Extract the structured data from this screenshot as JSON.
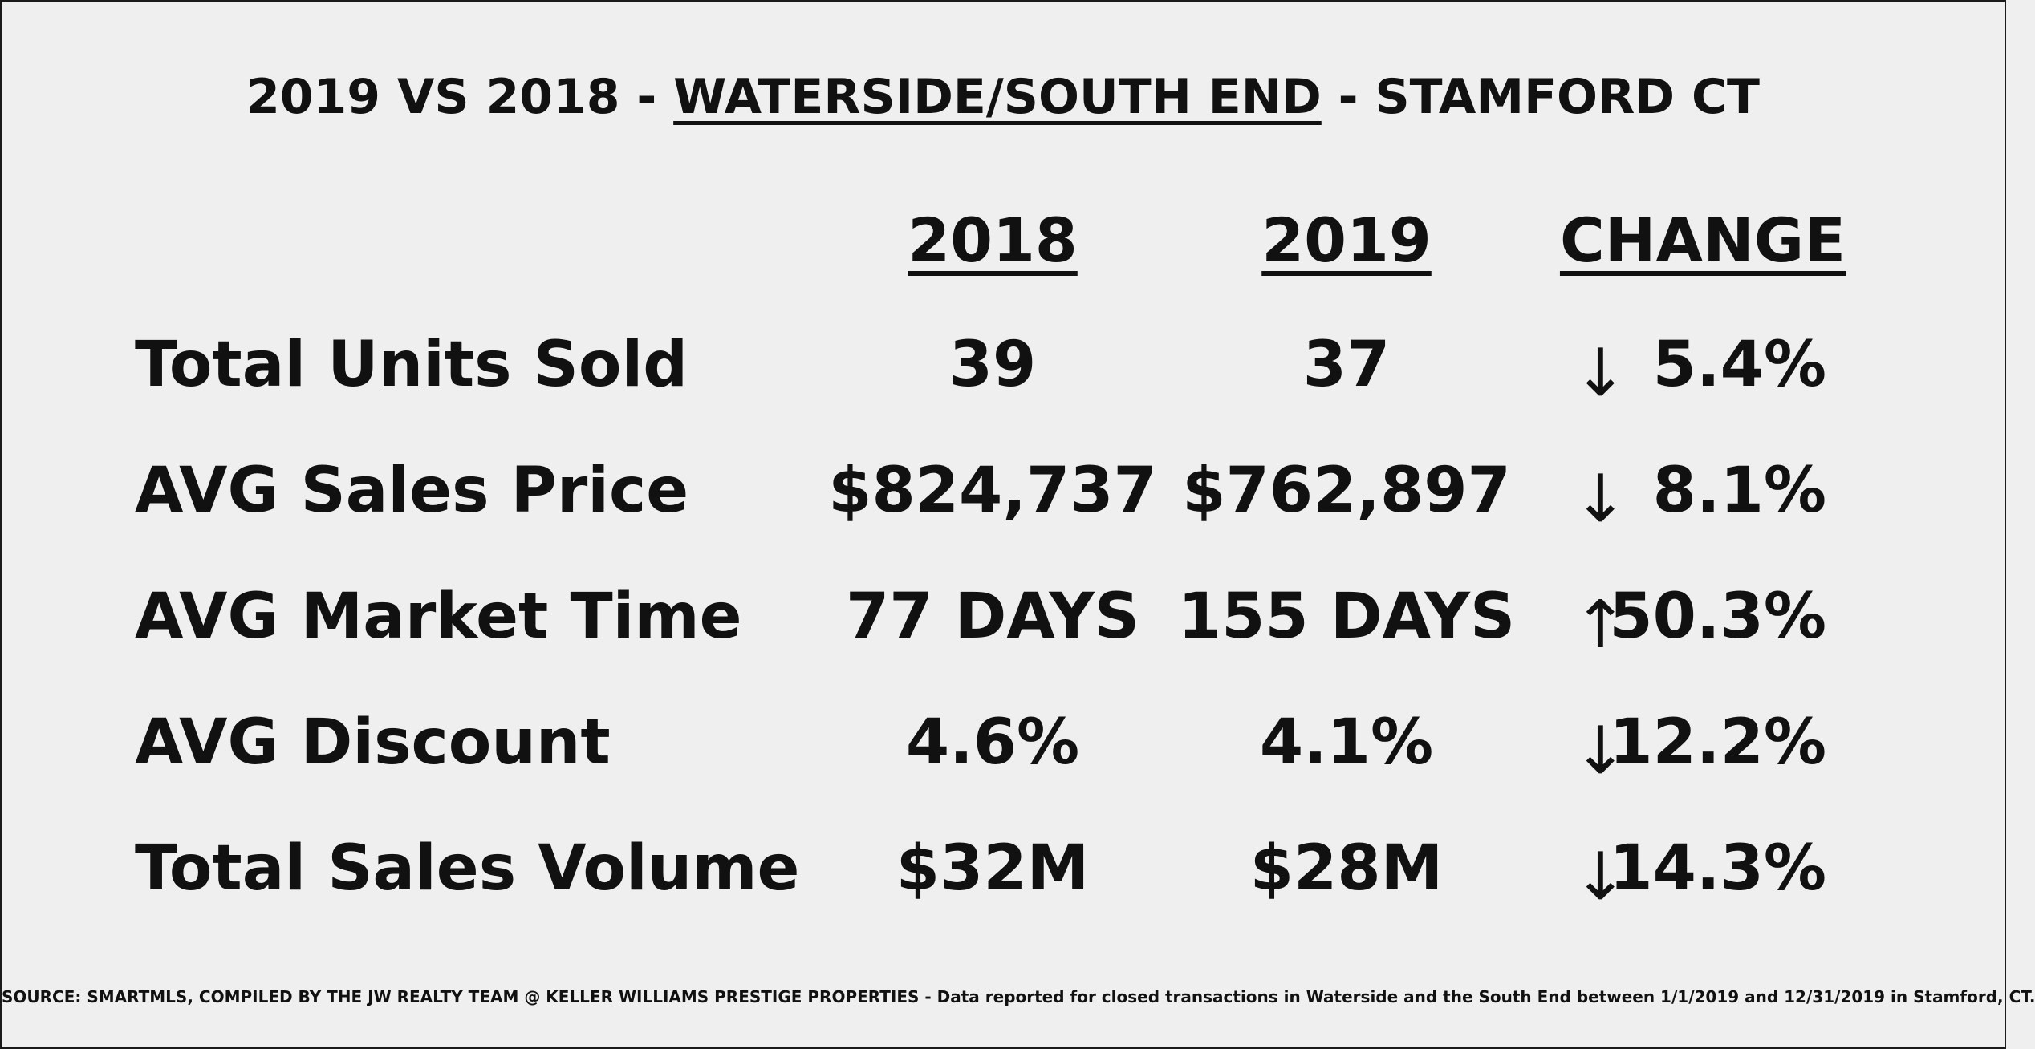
{
  "title": {
    "prefix": "2019 VS 2018 - ",
    "neighborhood": "WATERSIDE/SOUTH END",
    "suffix": " - STAMFORD CT"
  },
  "columns": {
    "year_a": "2018",
    "year_b": "2019",
    "change": "CHANGE"
  },
  "rows": [
    {
      "label": "Total Units Sold",
      "v2018": "39",
      "v2019": "37",
      "arrow": "↓",
      "change": "5.4%"
    },
    {
      "label": "AVG Sales Price",
      "v2018": "$824,737",
      "v2019": "$762,897",
      "arrow": "↓",
      "change": "8.1%"
    },
    {
      "label": "AVG Market Time",
      "v2018": "77 DAYS",
      "v2019": "155 DAYS",
      "arrow": "↑",
      "change": "50.3%"
    },
    {
      "label": "AVG Discount",
      "v2018": "4.6%",
      "v2019": "4.1%",
      "arrow": "↓",
      "change": "12.2%"
    },
    {
      "label": "Total Sales Volume",
      "v2018": "$32M",
      "v2019": "$28M",
      "arrow": "↓",
      "change": "14.3%"
    }
  ],
  "source": {
    "text": "SOURCE: SMARTMLS, COMPILED BY THE JW REALTY TEAM @ KELLER WILLIAMS PRESTIGE PROPERTIES - Data reported for closed transactions in Waterside and the South End between 1/1/2019 and 12/31/2019 in Stamford, CT."
  },
  "colors": {
    "background": "#efefef",
    "text": "#111111",
    "border": "#1a1a1a"
  }
}
